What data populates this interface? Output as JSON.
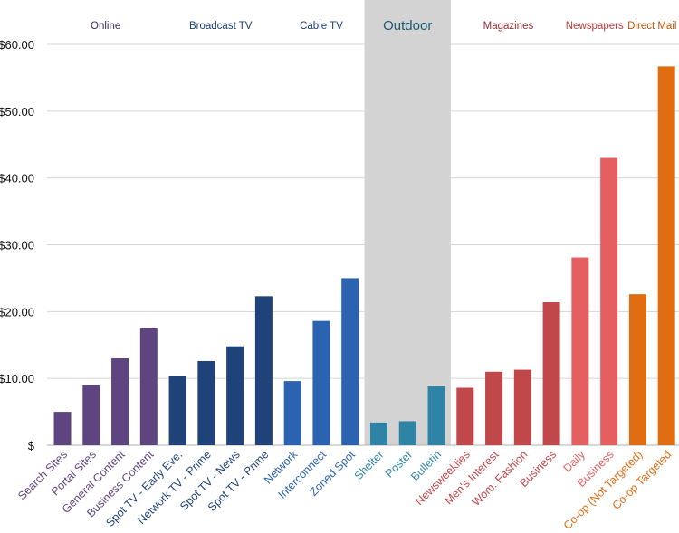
{
  "chart_data": {
    "type": "bar",
    "title": "",
    "xlabel": "",
    "ylabel": "",
    "ylim": [
      0,
      60
    ],
    "y_ticks": [
      {
        "value": 0,
        "label": "$"
      },
      {
        "value": 10,
        "label": "$10.00"
      },
      {
        "value": 20,
        "label": "$20.00"
      },
      {
        "value": 30,
        "label": "$30.00"
      },
      {
        "value": 40,
        "label": "$40.00"
      },
      {
        "value": 50,
        "label": "$50.00"
      },
      {
        "value": 60,
        "label": "$60.00"
      }
    ],
    "grid": true,
    "highlighted_group": "Outdoor",
    "groups": [
      {
        "name": "Online",
        "color": "#5e4580",
        "categories": [
          "Search Sites",
          "Portal Sites",
          "General Content",
          "Business Content"
        ],
        "values": [
          5.0,
          9.0,
          13.0,
          17.5
        ]
      },
      {
        "name": "Broadcast TV",
        "color": "#1f4278",
        "categories": [
          "Spot TV - Early Eve.",
          "Network TV - Prime",
          "Spot TV - News",
          "Spot TV - Prime"
        ],
        "values": [
          10.3,
          12.6,
          14.8,
          22.3
        ]
      },
      {
        "name": "Cable TV",
        "color": "#2c63b0",
        "categories": [
          "Network",
          "Interconnect",
          "Zoned Spot"
        ],
        "values": [
          9.6,
          18.6,
          25.0
        ]
      },
      {
        "name": "Outdoor",
        "color": "#2f84a6",
        "categories": [
          "Shelter",
          "Poster",
          "Bulletin"
        ],
        "values": [
          3.4,
          3.6,
          8.8
        ]
      },
      {
        "name": "Magazines",
        "color": "#c0474a",
        "categories": [
          "Newsweeklies",
          "Men's Interest",
          "Wom. Fashion",
          "Business"
        ],
        "values": [
          8.6,
          11.0,
          11.3,
          21.4
        ]
      },
      {
        "name": "Newspapers",
        "color": "#e45f5f",
        "categories": [
          "Daily",
          "Business"
        ],
        "values": [
          28.1,
          43.0
        ]
      },
      {
        "name": "Direct Mail",
        "color": "#e06c12",
        "categories": [
          "Co-op (Not Targeted)",
          "Co-op Targeted"
        ],
        "values": [
          22.6,
          56.7
        ]
      }
    ],
    "header_colors": {
      "Online": "#3b2a5a",
      "Broadcast TV": "#1d3d6e",
      "Cable TV": "#1d3d6e",
      "Outdoor": "#1c5a75",
      "Magazines": "#8e2f33",
      "Newspapers": "#b83a3a",
      "Direct Mail": "#b5560b"
    }
  }
}
